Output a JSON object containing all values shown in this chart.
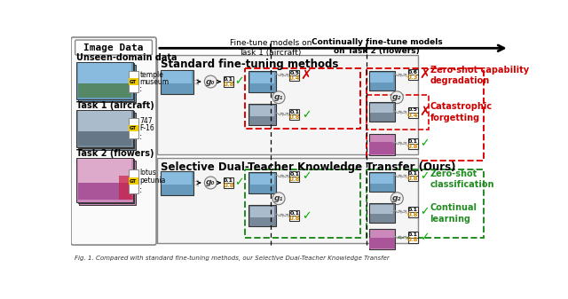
{
  "bg_color": "#ffffff",
  "section1_title": "Standard fine-tuning methods",
  "section2_title": "Selective Dual-Teacher Knowledge Transfer (Ours)",
  "left_panel_title": "Image Data",
  "unseen_label": "Unseen-domain data",
  "task1_label": "Task 1 (aircraft)",
  "task2_label": "Task 2 (flowers)",
  "gt_aircraft": [
    "747",
    "F-16"
  ],
  "gt_flowers": [
    "lotus",
    "petunia"
  ],
  "gt_unseen": [
    "temple",
    "museum"
  ],
  "top_label1": "Fine-tune models on\nTask 1 (aircraft)",
  "top_label2": "Continually fine-tune models\non Task 2 (flowers)",
  "right_label1": "Zero-shot capability\ndegradation",
  "right_label2": "Catastrophic\nforgetting",
  "right_label3": "Zero-shot\nclassification",
  "right_label4": "Continual\nlearning",
  "caption": "Fig. 1. Compared with standard fine-tuning methods, our Selective Dual-Teacher Knowledge Transfer"
}
